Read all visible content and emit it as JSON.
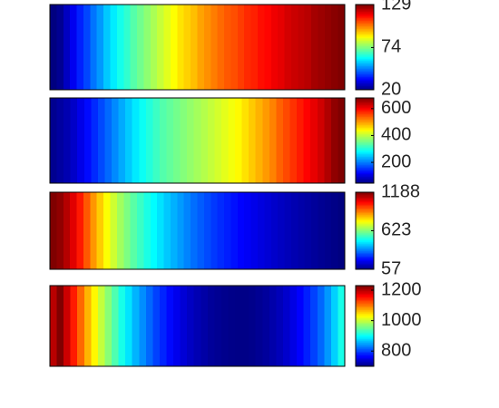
{
  "chart_data": [
    {
      "type": "heatmap",
      "colormap": "jet",
      "clim": [
        20,
        129
      ],
      "colorbar_ticks": [
        {
          "value": 129,
          "label": "129"
        },
        {
          "value": 74,
          "label": "74"
        },
        {
          "value": 20,
          "label": "20"
        }
      ],
      "values": [
        20,
        22,
        27,
        32,
        37,
        41,
        46,
        50,
        55,
        59,
        63,
        66,
        70,
        73,
        76,
        79,
        82,
        85,
        88,
        91,
        93,
        95,
        98,
        100,
        102,
        104,
        106,
        107,
        109,
        111,
        112,
        114,
        115,
        117,
        118,
        120,
        121,
        122,
        123,
        125,
        126,
        127,
        128,
        129
      ]
    },
    {
      "type": "heatmap",
      "colormap": "jet",
      "clim": [
        45,
        680
      ],
      "colorbar_ticks": [
        {
          "value": 600,
          "label": "600"
        },
        {
          "value": 400,
          "label": "400"
        },
        {
          "value": 200,
          "label": "200"
        }
      ],
      "values": [
        55,
        65,
        75,
        90,
        110,
        130,
        150,
        170,
        190,
        210,
        230,
        250,
        270,
        290,
        305,
        320,
        335,
        345,
        355,
        365,
        375,
        385,
        395,
        405,
        415,
        425,
        435,
        445,
        460,
        475,
        490,
        505,
        520,
        540,
        555,
        570,
        585,
        600,
        615,
        630,
        650,
        670,
        680
      ]
    },
    {
      "type": "heatmap",
      "colormap": "jet",
      "clim": [
        57,
        1188
      ],
      "colorbar_ticks": [
        {
          "value": 1188,
          "label": "1188"
        },
        {
          "value": 623,
          "label": "623"
        },
        {
          "value": 57,
          "label": "57"
        }
      ],
      "values": [
        1188,
        1170,
        1130,
        1080,
        1020,
        950,
        880,
        820,
        760,
        710,
        660,
        620,
        580,
        545,
        510,
        480,
        450,
        420,
        395,
        370,
        345,
        320,
        300,
        280,
        260,
        245,
        230,
        215,
        200,
        188,
        175,
        163,
        152,
        141,
        131,
        121,
        112,
        103,
        95,
        87,
        79,
        72,
        65,
        57
      ]
    },
    {
      "type": "heatmap",
      "colormap": "jet",
      "clim": [
        700,
        1230
      ],
      "colorbar_ticks": [
        {
          "value": 1200,
          "label": "1200"
        },
        {
          "value": 1000,
          "label": "1000"
        },
        {
          "value": 800,
          "label": "800"
        }
      ],
      "values": [
        1200,
        1230,
        1190,
        1150,
        1110,
        1070,
        1035,
        1000,
        970,
        940,
        910,
        885,
        860,
        840,
        820,
        800,
        785,
        770,
        757,
        745,
        735,
        727,
        720,
        714,
        710,
        707,
        705,
        704,
        704,
        706,
        710,
        715,
        722,
        730,
        740,
        752,
        766,
        782,
        800,
        820,
        845,
        875,
        910
      ]
    }
  ]
}
